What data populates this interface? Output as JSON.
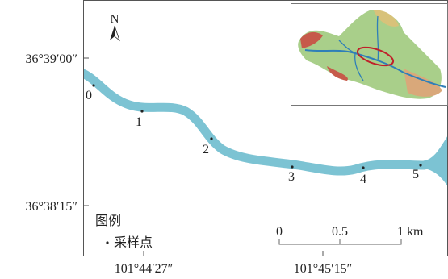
{
  "map": {
    "north": "N",
    "lat_labels": [
      "36°39′00″",
      "36°38′15″"
    ],
    "lon_labels": [
      "101°44′27″",
      "101°45′15″"
    ],
    "sample_points": [
      "0",
      "1",
      "2",
      "3",
      "4",
      "5"
    ],
    "legend": {
      "title": "图例",
      "item": "采样点"
    },
    "scale_bar": [
      "0",
      "0.5",
      "1 km"
    ]
  }
}
